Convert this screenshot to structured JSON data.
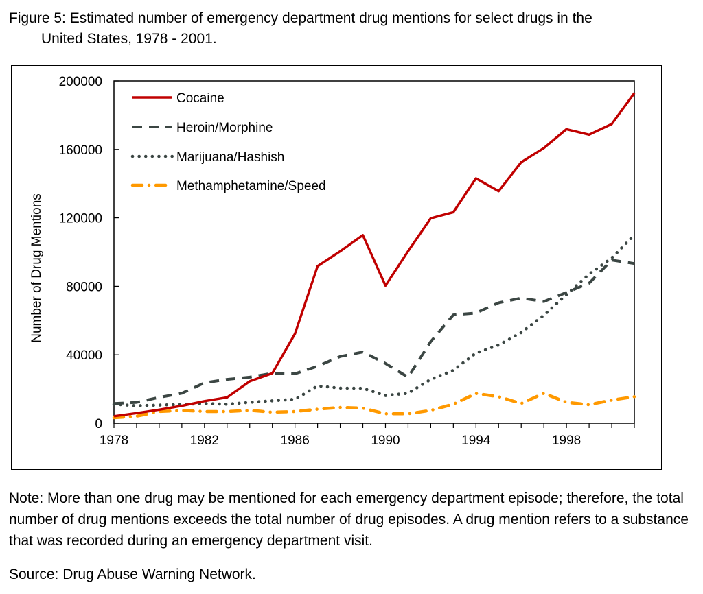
{
  "title": {
    "line1": "Figure 5: Estimated number of emergency department drug mentions for select drugs in the",
    "line2": "United States, 1978 - 2001."
  },
  "note": "Note: More than one drug may be mentioned for each emergency department episode; therefore, the total number of drug mentions exceeds the total number of drug episodes. A drug mention refers to a substance that was recorded during an emergency department visit.",
  "source": "Source: Drug Abuse Warning Network.",
  "chart_data": {
    "type": "line",
    "title": "Estimated number of emergency department drug mentions for select drugs in the United States, 1978 - 2001",
    "xlabel": "",
    "ylabel": "Number of Drug Mentions",
    "xlim": [
      1978,
      2001
    ],
    "ylim": [
      0,
      200000
    ],
    "x_ticks": [
      1978,
      1982,
      1986,
      1990,
      1994,
      1998
    ],
    "x_tick_labels": [
      "1978",
      "1982",
      "1986",
      "1990",
      "1994",
      "1998"
    ],
    "y_ticks": [
      0,
      40000,
      80000,
      120000,
      160000,
      200000
    ],
    "y_tick_labels": [
      "0",
      "40000",
      "80000",
      "120000",
      "160000",
      "200000"
    ],
    "grid": false,
    "legend_position": "top-left",
    "x": [
      1978,
      1979,
      1980,
      1981,
      1982,
      1983,
      1984,
      1985,
      1986,
      1987,
      1988,
      1989,
      1990,
      1991,
      1992,
      1993,
      1994,
      1995,
      1996,
      1997,
      1998,
      1999,
      2000,
      2001
    ],
    "series": [
      {
        "name": "Cocaine",
        "color": "#C00000",
        "style": "solid",
        "values": [
          4100,
          5900,
          7900,
          10200,
          12900,
          15100,
          24500,
          29200,
          52300,
          91800,
          100500,
          109900,
          80400,
          100500,
          119700,
          123300,
          143100,
          135600,
          152500,
          160800,
          171800,
          168600,
          174800,
          192900
        ]
      },
      {
        "name": "Heroin/Morphine",
        "color": "#3B4643",
        "style": "dashed",
        "values": [
          11500,
          12200,
          15100,
          17500,
          23600,
          25600,
          26900,
          29200,
          28900,
          33300,
          39000,
          41600,
          34900,
          26900,
          47700,
          63300,
          64400,
          70400,
          73100,
          71100,
          76400,
          81800,
          95300,
          93300
        ]
      },
      {
        "name": "Marijuana/Hashish",
        "color": "#3B4643",
        "style": "dotted",
        "values": [
          11100,
          10200,
          10600,
          11000,
          11500,
          11100,
          12200,
          13100,
          14000,
          21800,
          20500,
          20400,
          16200,
          17500,
          25600,
          30900,
          41000,
          45700,
          53000,
          63100,
          75100,
          87100,
          96500,
          110000
        ]
      },
      {
        "name": "Methamphetamine/Speed",
        "color": "#FF9900",
        "style": "dash-dot",
        "values": [
          3200,
          4100,
          6800,
          7500,
          6800,
          6800,
          7500,
          6400,
          6800,
          8200,
          9200,
          8800,
          5500,
          5500,
          7500,
          11100,
          17400,
          15500,
          11500,
          17500,
          12200,
          10800,
          13500,
          15500
        ]
      }
    ]
  }
}
